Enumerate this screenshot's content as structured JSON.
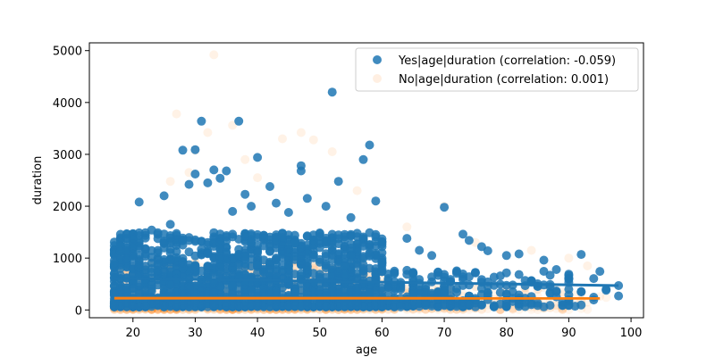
{
  "chart_data": {
    "type": "scatter",
    "xlabel": "age",
    "ylabel": "duration",
    "xlim": [
      13,
      102
    ],
    "ylim": [
      -150,
      5150
    ],
    "xticks": [
      20,
      30,
      40,
      50,
      60,
      70,
      80,
      90,
      100
    ],
    "yticks": [
      0,
      1000,
      2000,
      3000,
      4000,
      5000
    ],
    "grid": false,
    "legend_position": "top-right",
    "series": [
      {
        "name": "No|age|duration (correlation: 0.001)",
        "color": "#ff7f0e",
        "opacity": 0.08,
        "trend": {
          "x": [
            17,
            95
          ],
          "y": [
            226,
            225
          ]
        },
        "outliers": [
          [
            27,
            3780
          ],
          [
            32,
            3420
          ],
          [
            33,
            4920
          ],
          [
            30,
            3080
          ],
          [
            36,
            3560
          ],
          [
            44,
            3300
          ],
          [
            47,
            3420
          ],
          [
            52,
            3050
          ],
          [
            49,
            3280
          ],
          [
            29,
            2650
          ],
          [
            40,
            2550
          ],
          [
            56,
            2300
          ],
          [
            70,
            2000
          ],
          [
            75,
            1300
          ],
          [
            84,
            1150
          ],
          [
            90,
            1000
          ],
          [
            93,
            850
          ],
          [
            64,
            1600
          ],
          [
            26,
            2480
          ],
          [
            38,
            2900
          ]
        ]
      },
      {
        "name": "Yes|age|duration (correlation: -0.059)",
        "color": "#1f77b4",
        "opacity": 0.85,
        "trend": {
          "x": [
            17,
            98
          ],
          "y": [
            610,
            470
          ]
        },
        "outliers": [
          [
            31,
            3640
          ],
          [
            37,
            3640
          ],
          [
            52,
            4200
          ],
          [
            28,
            3080
          ],
          [
            30,
            3090
          ],
          [
            58,
            3180
          ],
          [
            40,
            2940
          ],
          [
            47,
            2780
          ],
          [
            47,
            2680
          ],
          [
            30,
            2620
          ],
          [
            33,
            2700
          ],
          [
            35,
            2680
          ],
          [
            53,
            2480
          ],
          [
            57,
            2900
          ],
          [
            42,
            2380
          ],
          [
            29,
            2420
          ],
          [
            38,
            2230
          ],
          [
            43,
            2060
          ],
          [
            25,
            2200
          ],
          [
            21,
            2080
          ],
          [
            48,
            2150
          ],
          [
            59,
            2100
          ],
          [
            34,
            2540
          ],
          [
            32,
            2450
          ],
          [
            39,
            2000
          ],
          [
            51,
            2000
          ],
          [
            70,
            1980
          ],
          [
            73,
            1460
          ],
          [
            74,
            1340
          ],
          [
            76,
            1220
          ],
          [
            77,
            1140
          ],
          [
            80,
            1050
          ],
          [
            82,
            1080
          ],
          [
            92,
            1070
          ],
          [
            86,
            960
          ],
          [
            88,
            780
          ],
          [
            98,
            470
          ],
          [
            98,
            270
          ],
          [
            96,
            380
          ],
          [
            90,
            290
          ],
          [
            64,
            1380
          ],
          [
            66,
            1150
          ],
          [
            68,
            1050
          ],
          [
            45,
            1880
          ],
          [
            55,
            1780
          ],
          [
            36,
            1900
          ],
          [
            26,
            1650
          ],
          [
            23,
            1540
          ],
          [
            19,
            1470
          ],
          [
            18,
            1130
          ],
          [
            17,
            900
          ]
        ]
      }
    ]
  }
}
